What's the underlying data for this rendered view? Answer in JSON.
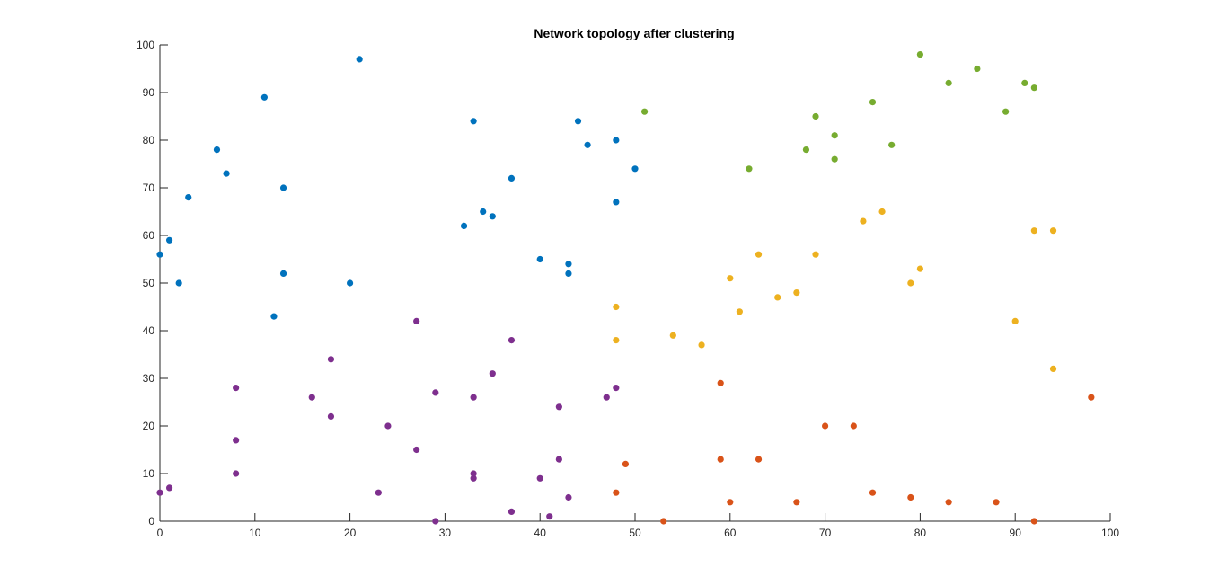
{
  "chart_data": {
    "type": "scatter",
    "title": "Network topology after clustering",
    "xlabel": "",
    "ylabel": "",
    "xlim": [
      0,
      100
    ],
    "ylim": [
      0,
      100
    ],
    "xticks": [
      0,
      10,
      20,
      30,
      40,
      50,
      60,
      70,
      80,
      90,
      100
    ],
    "yticks": [
      0,
      10,
      20,
      30,
      40,
      50,
      60,
      70,
      80,
      90,
      100
    ],
    "grid": false,
    "legend": "none",
    "series": [
      {
        "color": "#0072BD",
        "points": [
          [
            0,
            56
          ],
          [
            1,
            59
          ],
          [
            2,
            50
          ],
          [
            3,
            68
          ],
          [
            6,
            78
          ],
          [
            7,
            73
          ],
          [
            11,
            89
          ],
          [
            12,
            43
          ],
          [
            13,
            70
          ],
          [
            13,
            52
          ],
          [
            20,
            50
          ],
          [
            21,
            97
          ],
          [
            32,
            62
          ],
          [
            33,
            84
          ],
          [
            34,
            65
          ],
          [
            35,
            64
          ],
          [
            37,
            72
          ],
          [
            40,
            55
          ],
          [
            43,
            54
          ],
          [
            43,
            52
          ],
          [
            44,
            84
          ],
          [
            45,
            79
          ],
          [
            48,
            80
          ],
          [
            48,
            67
          ],
          [
            50,
            74
          ]
        ]
      },
      {
        "color": "#D95319",
        "points": [
          [
            49,
            12
          ],
          [
            48,
            6
          ],
          [
            53,
            0
          ],
          [
            59,
            29
          ],
          [
            59,
            13
          ],
          [
            60,
            4
          ],
          [
            63,
            13
          ],
          [
            67,
            4
          ],
          [
            70,
            20
          ],
          [
            73,
            20
          ],
          [
            75,
            6
          ],
          [
            79,
            5
          ],
          [
            83,
            4
          ],
          [
            88,
            4
          ],
          [
            92,
            0
          ],
          [
            98,
            26
          ]
        ]
      },
      {
        "color": "#EDB120",
        "points": [
          [
            48,
            45
          ],
          [
            48,
            38
          ],
          [
            54,
            39
          ],
          [
            57,
            37
          ],
          [
            60,
            51
          ],
          [
            61,
            44
          ],
          [
            63,
            56
          ],
          [
            65,
            47
          ],
          [
            67,
            48
          ],
          [
            69,
            56
          ],
          [
            74,
            63
          ],
          [
            76,
            65
          ],
          [
            79,
            50
          ],
          [
            80,
            53
          ],
          [
            90,
            42
          ],
          [
            92,
            61
          ],
          [
            94,
            61
          ],
          [
            94,
            32
          ]
        ]
      },
      {
        "color": "#7E2F8E",
        "points": [
          [
            0,
            6
          ],
          [
            1,
            7
          ],
          [
            8,
            28
          ],
          [
            8,
            17
          ],
          [
            8,
            10
          ],
          [
            16,
            26
          ],
          [
            18,
            34
          ],
          [
            18,
            22
          ],
          [
            23,
            6
          ],
          [
            24,
            20
          ],
          [
            27,
            42
          ],
          [
            27,
            15
          ],
          [
            29,
            27
          ],
          [
            29,
            0
          ],
          [
            33,
            26
          ],
          [
            33,
            10
          ],
          [
            33,
            9
          ],
          [
            35,
            31
          ],
          [
            37,
            38
          ],
          [
            37,
            2
          ],
          [
            40,
            9
          ],
          [
            41,
            1
          ],
          [
            42,
            24
          ],
          [
            42,
            13
          ],
          [
            43,
            5
          ],
          [
            47,
            26
          ],
          [
            48,
            28
          ]
        ]
      },
      {
        "color": "#77AC30",
        "points": [
          [
            51,
            86
          ],
          [
            62,
            74
          ],
          [
            68,
            78
          ],
          [
            69,
            85
          ],
          [
            71,
            81
          ],
          [
            71,
            76
          ],
          [
            75,
            88
          ],
          [
            77,
            79
          ],
          [
            80,
            98
          ],
          [
            83,
            92
          ],
          [
            86,
            95
          ],
          [
            89,
            86
          ],
          [
            91,
            92
          ],
          [
            92,
            91
          ]
        ]
      }
    ]
  }
}
